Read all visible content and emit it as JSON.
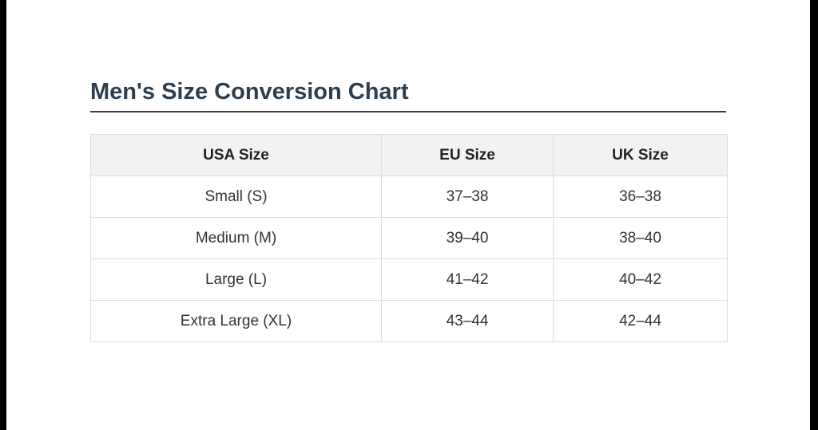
{
  "header": {
    "title": "Men's Size Conversion Chart"
  },
  "table": {
    "headers": [
      "USA Size",
      "EU Size",
      "UK Size"
    ],
    "rows": [
      [
        "Small (S)",
        "37–38",
        "36–38"
      ],
      [
        "Medium (M)",
        "39–40",
        "38–40"
      ],
      [
        "Large (L)",
        "41–42",
        "40–42"
      ],
      [
        "Extra Large (XL)",
        "43–44",
        "42–44"
      ]
    ]
  }
}
